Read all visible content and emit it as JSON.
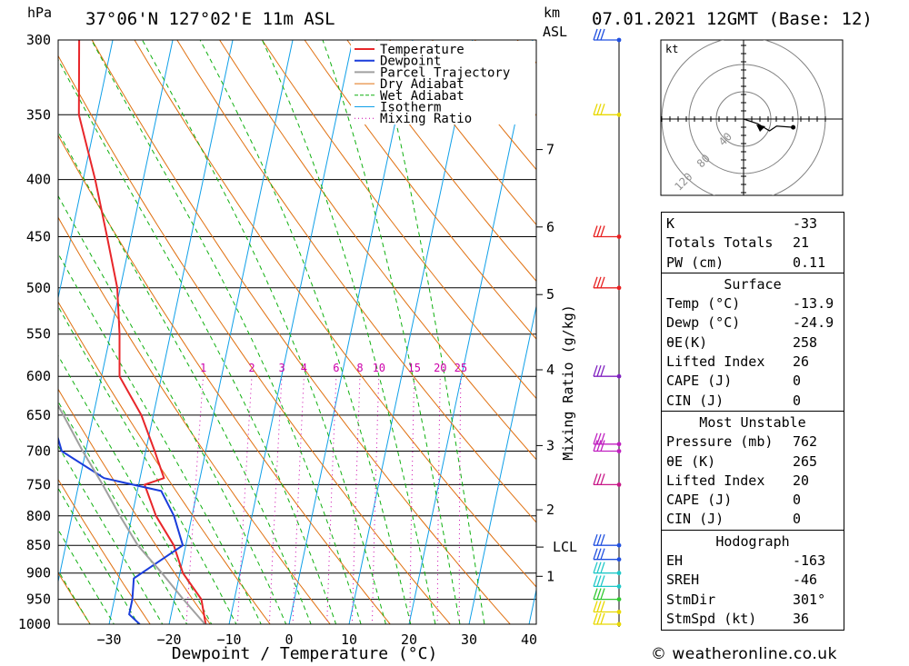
{
  "header": {
    "unit_hpa": "hPa",
    "location": "37°06'N 127°02'E 11m ASL",
    "unit_km": "km",
    "unit_asl": "ASL",
    "datetime": "07.01.2021 12GMT (Base: 12)"
  },
  "chart_data": {
    "type": "line",
    "subtype": "skew-T log-p diagram",
    "xlabel": "Dewpoint / Temperature (°C)",
    "ylabel": "hPa",
    "x_ticks": [
      -30,
      -20,
      -10,
      0,
      10,
      20,
      30,
      40
    ],
    "pressure_levels": [
      300,
      350,
      400,
      450,
      500,
      550,
      600,
      650,
      700,
      750,
      800,
      850,
      900,
      950,
      1000
    ],
    "height_km_labels": [
      {
        "label": "1",
        "p": 906
      },
      {
        "label": "2",
        "p": 790
      },
      {
        "label": "3",
        "p": 692
      },
      {
        "label": "4",
        "p": 592
      },
      {
        "label": "5",
        "p": 507
      },
      {
        "label": "6",
        "p": 441
      },
      {
        "label": "7",
        "p": 376
      }
    ],
    "lcl": {
      "label": "LCL",
      "p": 853
    },
    "mixing_ratio_axis_label": "Mixing Ratio (g/kg)",
    "mixing_ratios": [
      "1",
      "2",
      "3",
      "4",
      "6",
      "8",
      "10",
      "15",
      "20",
      "25"
    ],
    "legend": [
      "Temperature",
      "Dewpoint",
      "Parcel Trajectory",
      "Dry Adiabat",
      "Wet Adiabat",
      "Isotherm",
      "Mixing Ratio"
    ],
    "colors": {
      "temperature": "#e8262a",
      "dewpoint": "#1a3ddb",
      "parcel": "#a0a0a0",
      "dry_adiabat": "#e07010",
      "wet_adiabat": "#10b010",
      "isotherm": "#10a0e8",
      "mixing_ratio": "#cc00aa"
    },
    "series": [
      {
        "name": "Temperature",
        "points": [
          [
            1000,
            -13.9
          ],
          [
            950,
            -15.5
          ],
          [
            900,
            -19.5
          ],
          [
            850,
            -22
          ],
          [
            800,
            -26
          ],
          [
            750,
            -29
          ],
          [
            740,
            -26
          ],
          [
            700,
            -28.5
          ],
          [
            650,
            -32
          ],
          [
            600,
            -37
          ],
          [
            550,
            -38.5
          ],
          [
            500,
            -40.5
          ],
          [
            450,
            -44
          ],
          [
            400,
            -48
          ],
          [
            350,
            -53
          ],
          [
            300,
            -55.6
          ]
        ]
      },
      {
        "name": "Dewpoint",
        "points": [
          [
            1000,
            -24.9
          ],
          [
            980,
            -27
          ],
          [
            950,
            -27
          ],
          [
            910,
            -27.5
          ],
          [
            850,
            -20.5
          ],
          [
            800,
            -23
          ],
          [
            760,
            -26
          ],
          [
            740,
            -36
          ],
          [
            700,
            -44
          ],
          [
            650,
            -47
          ],
          [
            600,
            -50
          ],
          [
            550,
            -57
          ],
          [
            500,
            -62
          ],
          [
            450,
            -63
          ],
          [
            400,
            -64
          ],
          [
            370,
            -68
          ],
          [
            350,
            -69
          ],
          [
            300,
            -73
          ]
        ]
      },
      {
        "name": "Parcel Trajectory",
        "points": [
          [
            1000,
            -14
          ],
          [
            950,
            -18.5
          ],
          [
            900,
            -23
          ],
          [
            850,
            -28
          ],
          [
            800,
            -32
          ],
          [
            750,
            -36
          ],
          [
            700,
            -40.5
          ],
          [
            650,
            -45
          ],
          [
            600,
            -50
          ],
          [
            550,
            -55
          ],
          [
            500,
            -60
          ]
        ]
      }
    ],
    "wind_barbs": [
      {
        "p": 1000,
        "color": "#e8d800"
      },
      {
        "p": 975,
        "color": "#e8d800"
      },
      {
        "p": 950,
        "color": "#30c830"
      },
      {
        "p": 925,
        "color": "#20c8c8"
      },
      {
        "p": 900,
        "color": "#20c8c8"
      },
      {
        "p": 875,
        "color": "#2050e0"
      },
      {
        "p": 850,
        "color": "#2050e0"
      },
      {
        "p": 750,
        "color": "#c81888"
      },
      {
        "p": 700,
        "color": "#c020c0"
      },
      {
        "p": 690,
        "color": "#c020c0"
      },
      {
        "p": 600,
        "color": "#8020c0"
      },
      {
        "p": 500,
        "color": "#e82020"
      },
      {
        "p": 450,
        "color": "#e82020"
      },
      {
        "p": 350,
        "color": "#e8d800"
      },
      {
        "p": 300,
        "color": "#2050e0"
      }
    ],
    "hodograph": {
      "unit": "kt",
      "ring_labels": [
        "40",
        "80",
        "120"
      ],
      "points": [
        [
          0,
          0
        ],
        [
          12,
          -4
        ],
        [
          22,
          -10
        ],
        [
          28,
          -6
        ],
        [
          42,
          -7
        ]
      ]
    }
  },
  "indices": {
    "block1": [
      {
        "label": "K",
        "value": "-33"
      },
      {
        "label": "Totals Totals",
        "value": "21"
      },
      {
        "label": "PW (cm)",
        "value": "0.11"
      }
    ],
    "surface": {
      "title": "Surface",
      "rows": [
        {
          "label": "Temp (°C)",
          "value": "-13.9"
        },
        {
          "label": "Dewp (°C)",
          "value": "-24.9"
        },
        {
          "label": "θE(K)",
          "value": "258"
        },
        {
          "label": "Lifted Index",
          "value": "26"
        },
        {
          "label": "CAPE (J)",
          "value": "0"
        },
        {
          "label": "CIN (J)",
          "value": "0"
        }
      ]
    },
    "most_unstable": {
      "title": "Most Unstable",
      "rows": [
        {
          "label": "Pressure (mb)",
          "value": "762"
        },
        {
          "label": "θE (K)",
          "value": "265"
        },
        {
          "label": "Lifted Index",
          "value": "20"
        },
        {
          "label": "CAPE (J)",
          "value": "0"
        },
        {
          "label": "CIN (J)",
          "value": "0"
        }
      ]
    },
    "hodograph": {
      "title": "Hodograph",
      "rows": [
        {
          "label": "EH",
          "value": "-163"
        },
        {
          "label": "SREH",
          "value": "-46"
        },
        {
          "label": "StmDir",
          "value": "301°"
        },
        {
          "label": "StmSpd (kt)",
          "value": "36"
        }
      ]
    }
  },
  "credit": "© weatheronline.co.uk"
}
